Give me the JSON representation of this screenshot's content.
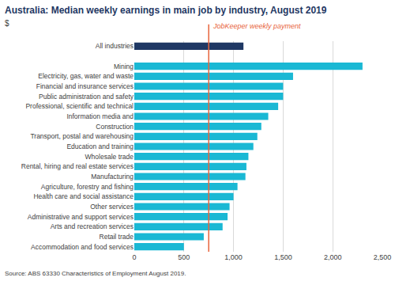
{
  "chart_data": {
    "type": "bar",
    "orientation": "horizontal",
    "title": "Australia: Median weekly earnings in main job by industry, August 2019",
    "subtitle": "$",
    "source": "Source: ABS 63330 Characteristics of Employment August 2019.",
    "categories": [
      "All industries",
      null,
      "Mining",
      "Electricity, gas, water and waste",
      "Financial and insurance services",
      "Public administration and safety",
      "Professional, scientific and technical",
      "Information media and",
      "Construction",
      "Transport, postal and warehousing",
      "Education and training",
      "Wholesale trade",
      "Rental, hiring and real estate services",
      "Manufacturing",
      "Agriculture, forestry and fishing",
      "Health care and social assistance",
      "Other services",
      "Administrative and support services",
      "Arts and recreation services",
      "Retail trade",
      "Accommodation and food services"
    ],
    "values": [
      1100,
      null,
      2300,
      1600,
      1500,
      1500,
      1450,
      1350,
      1280,
      1240,
      1200,
      1150,
      1130,
      1120,
      1040,
      1000,
      960,
      940,
      890,
      700,
      500
    ],
    "colors": [
      "#1f3864",
      "#1ab8d4",
      "#1ab8d4",
      "#1ab8d4",
      "#1ab8d4",
      "#1ab8d4",
      "#1ab8d4",
      "#1ab8d4",
      "#1ab8d4",
      "#1ab8d4",
      "#1ab8d4",
      "#1ab8d4",
      "#1ab8d4",
      "#1ab8d4",
      "#1ab8d4",
      "#1ab8d4",
      "#1ab8d4",
      "#1ab8d4",
      "#1ab8d4",
      "#1ab8d4",
      "#1ab8d4"
    ],
    "xlim": [
      0,
      2500
    ],
    "xticks": [
      0,
      500,
      {
        "value": 1000,
        "label": "1,000"
      },
      {
        "value": 1500,
        "label": "1,500"
      },
      {
        "value": 2000,
        "label": "2,000"
      },
      {
        "value": 2500,
        "label": "2,500"
      }
    ],
    "grid": true,
    "annotations": [
      {
        "text": "JobKeeper weekly payment",
        "x": 750,
        "color": "#e8643c"
      }
    ]
  }
}
